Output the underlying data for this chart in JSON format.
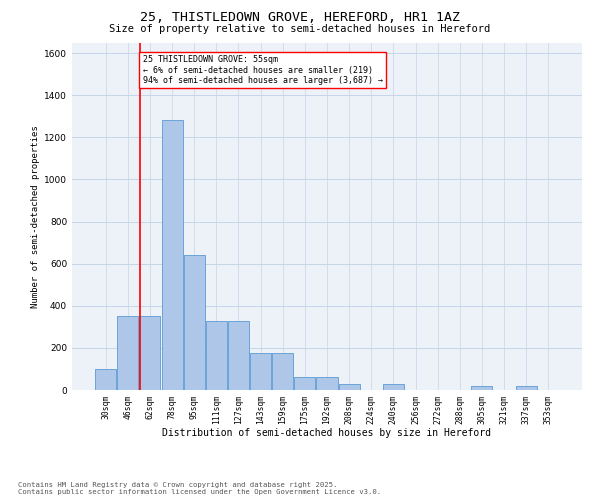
{
  "title_line1": "25, THISTLEDOWN GROVE, HEREFORD, HR1 1AZ",
  "title_line2": "Size of property relative to semi-detached houses in Hereford",
  "xlabel": "Distribution of semi-detached houses by size in Hereford",
  "ylabel": "Number of semi-detached properties",
  "bin_labels": [
    "30sqm",
    "46sqm",
    "62sqm",
    "78sqm",
    "95sqm",
    "111sqm",
    "127sqm",
    "143sqm",
    "159sqm",
    "175sqm",
    "192sqm",
    "208sqm",
    "224sqm",
    "240sqm",
    "256sqm",
    "272sqm",
    "288sqm",
    "305sqm",
    "321sqm",
    "337sqm",
    "353sqm"
  ],
  "bar_heights": [
    100,
    350,
    350,
    1280,
    640,
    330,
    330,
    175,
    175,
    60,
    60,
    30,
    0,
    30,
    0,
    0,
    0,
    20,
    0,
    20,
    0
  ],
  "bar_color": "#aec6e8",
  "bar_edge_color": "#5b9bd5",
  "red_line_x": 1.55,
  "annotation_title": "25 THISTLEDOWN GROVE: 55sqm",
  "annotation_line2": "← 6% of semi-detached houses are smaller (219)",
  "annotation_line3": "94% of semi-detached houses are larger (3,687) →",
  "ylim_max": 1650,
  "yticks": [
    0,
    200,
    400,
    600,
    800,
    1000,
    1200,
    1400,
    1600
  ],
  "footnote_line1": "Contains HM Land Registry data © Crown copyright and database right 2025.",
  "footnote_line2": "Contains public sector information licensed under the Open Government Licence v3.0.",
  "bg_color": "#edf2f9",
  "grid_color": "#c5d5e8"
}
